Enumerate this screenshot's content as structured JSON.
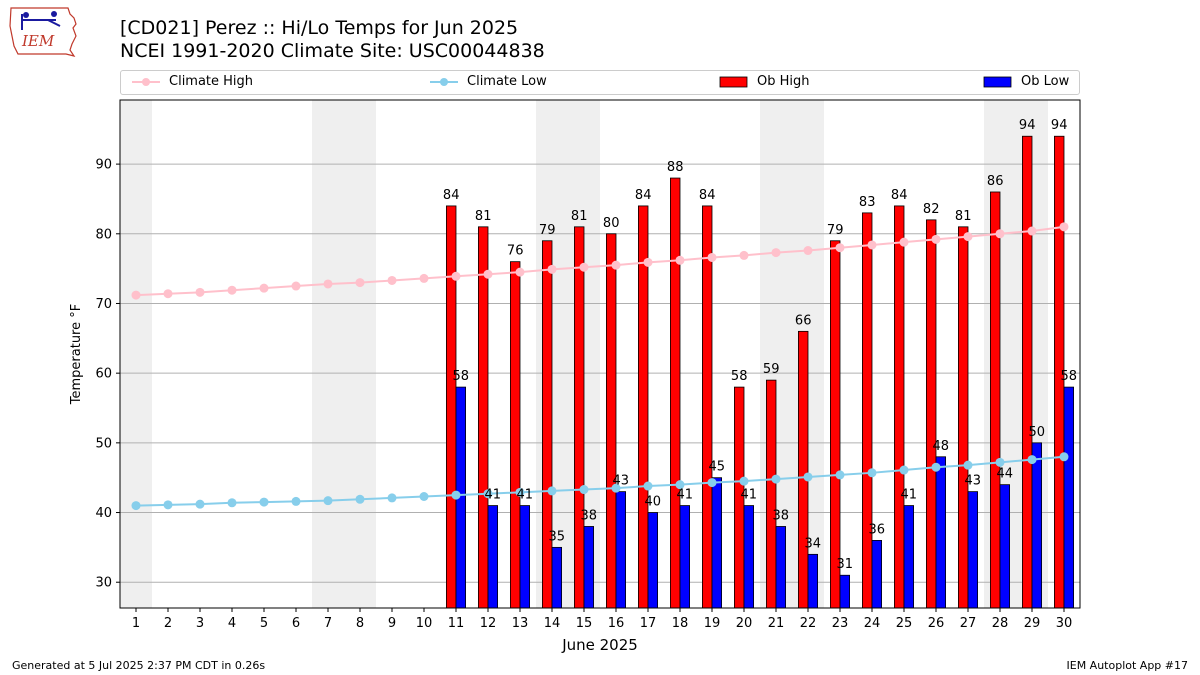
{
  "header": {
    "title_line1": "[CD021] Perez :: Hi/Lo Temps for Jun 2025",
    "title_line2": "NCEI 1991-2020 Climate Site: USC00044838"
  },
  "logo": {
    "text": "IEM"
  },
  "legend": {
    "climate_high": "Climate High",
    "climate_low": "Climate Low",
    "ob_high": "Ob High",
    "ob_low": "Ob Low"
  },
  "footer": {
    "left": "Generated at 5 Jul 2025 2:37 PM CDT in 0.26s",
    "right": "IEM Autoplot App #17"
  },
  "colors": {
    "climate_high": "#ffc0cb",
    "climate_low": "#87ceeb",
    "ob_high": "#ff0000",
    "ob_low": "#0000ff",
    "weekend_shade": "#efefef"
  },
  "chart_data": {
    "type": "bar",
    "xlabel": "June 2025",
    "ylabel": "Temperature °F",
    "ylim": [
      26.3,
      99.2
    ],
    "yticks": [
      30,
      40,
      50,
      60,
      70,
      80,
      90
    ],
    "grid": true,
    "legend_position": "top",
    "categories": [
      1,
      2,
      3,
      4,
      5,
      6,
      7,
      8,
      9,
      10,
      11,
      12,
      13,
      14,
      15,
      16,
      17,
      18,
      19,
      20,
      21,
      22,
      23,
      24,
      25,
      26,
      27,
      28,
      29,
      30
    ],
    "shaded_days": [
      1,
      7,
      8,
      14,
      15,
      21,
      22,
      28,
      29
    ],
    "series": [
      {
        "name": "Ob High",
        "kind": "bar",
        "values": [
          null,
          null,
          null,
          null,
          null,
          null,
          null,
          null,
          null,
          null,
          84,
          81,
          76,
          79,
          81,
          80,
          84,
          88,
          84,
          58,
          59,
          66,
          79,
          83,
          84,
          82,
          81,
          86,
          94,
          94
        ]
      },
      {
        "name": "Ob Low",
        "kind": "bar",
        "values": [
          null,
          null,
          null,
          null,
          null,
          null,
          null,
          null,
          null,
          null,
          58,
          41,
          41,
          35,
          38,
          43,
          40,
          41,
          45,
          41,
          38,
          34,
          31,
          36,
          41,
          48,
          43,
          44,
          50,
          58
        ]
      },
      {
        "name": "Climate High",
        "kind": "line",
        "values": [
          71.2,
          71.4,
          71.6,
          71.9,
          72.2,
          72.5,
          72.8,
          73.0,
          73.3,
          73.6,
          73.9,
          74.2,
          74.5,
          74.9,
          75.2,
          75.5,
          75.9,
          76.2,
          76.6,
          76.9,
          77.3,
          77.6,
          78.0,
          78.4,
          78.8,
          79.2,
          79.6,
          80.0,
          80.4,
          81.0
        ]
      },
      {
        "name": "Climate Low",
        "kind": "line",
        "values": [
          41.0,
          41.1,
          41.2,
          41.4,
          41.5,
          41.6,
          41.7,
          41.9,
          42.1,
          42.3,
          42.5,
          42.7,
          42.9,
          43.1,
          43.3,
          43.5,
          43.8,
          44.0,
          44.3,
          44.5,
          44.8,
          45.1,
          45.4,
          45.7,
          46.1,
          46.5,
          46.8,
          47.2,
          47.6,
          48.0
        ]
      }
    ]
  }
}
